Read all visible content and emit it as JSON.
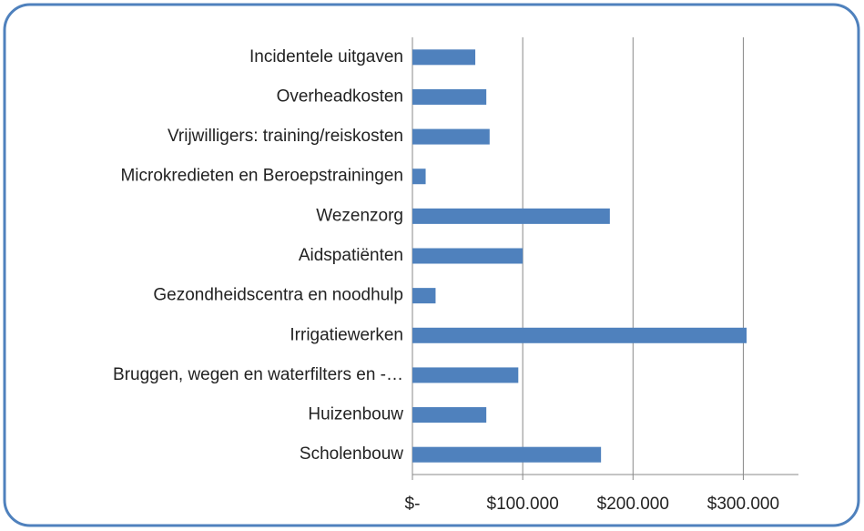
{
  "chart_data": {
    "type": "bar",
    "orientation": "horizontal",
    "categories": [
      "Incidentele uitgaven",
      "Overheadkosten",
      "Vrijwilligers: training/reiskosten",
      "Microkredieten en Beroepstrainingen",
      "Wezenzorg",
      "Aidspatiënten",
      "Gezondheidscentra en noodhulp",
      "Irrigatiewerken",
      "Bruggen, wegen en waterfilters en -…",
      "Huizenbouw",
      "Scholenbouw"
    ],
    "values": [
      57000,
      67000,
      70000,
      12000,
      179000,
      100000,
      21000,
      303000,
      96000,
      67000,
      171000
    ],
    "color": "#4f81bd",
    "xlim": [
      0,
      350000
    ],
    "xticks": [
      {
        "value": 0,
        "label": "$-"
      },
      {
        "value": 100000,
        "label": "$100.000"
      },
      {
        "value": 200000,
        "label": "$200.000"
      },
      {
        "value": 300000,
        "label": "$300.000"
      }
    ],
    "grid": true
  }
}
